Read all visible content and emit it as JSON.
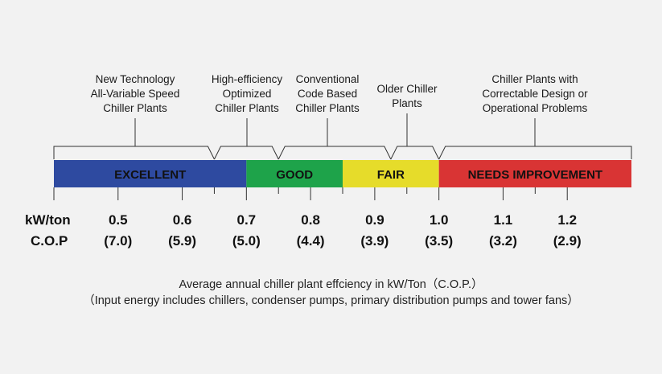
{
  "categories": [
    {
      "lines": [
        "New Technology",
        "All-Variable Speed",
        "Chiller Plants"
      ]
    },
    {
      "lines": [
        "High-efficiency",
        "Optimized",
        "Chiller Plants"
      ]
    },
    {
      "lines": [
        "Conventional",
        "Code Based",
        "Chiller Plants"
      ]
    },
    {
      "lines": [
        "Older Chiller",
        "Plants"
      ]
    },
    {
      "lines": [
        "Chiller Plants with",
        "Correctable Design or",
        "Operational Problems"
      ]
    }
  ],
  "bands": [
    {
      "label": "EXCELLENT",
      "color": "#2e4aa0",
      "from": 0.4,
      "to": 0.7
    },
    {
      "label": "GOOD",
      "color": "#1ea34a",
      "from": 0.7,
      "to": 0.85
    },
    {
      "label": "FAIR",
      "color": "#e6dc2a",
      "from": 0.85,
      "to": 1.0
    },
    {
      "label": "NEEDS IMPROVEMENT",
      "color": "#d93434",
      "from": 1.0,
      "to": 1.3
    }
  ],
  "row_labels": {
    "kw": "kW/ton",
    "cop": "C.O.P"
  },
  "scale": [
    {
      "kw": "0.5",
      "cop": "(7.0)"
    },
    {
      "kw": "0.6",
      "cop": "(5.9)"
    },
    {
      "kw": "0.7",
      "cop": "(5.0)"
    },
    {
      "kw": "0.8",
      "cop": "(4.4)"
    },
    {
      "kw": "0.9",
      "cop": "(3.9)"
    },
    {
      "kw": "1.0",
      "cop": "(3.5)"
    },
    {
      "kw": "1.1",
      "cop": "(3.2)"
    },
    {
      "kw": "1.2",
      "cop": "(2.9)"
    }
  ],
  "footer": {
    "line1": "Average annual chiller plant effciency in kW/Ton（C.O.P.）",
    "line2": "（Input energy includes chillers, condenser pumps, primary distribution pumps and tower fans）"
  }
}
